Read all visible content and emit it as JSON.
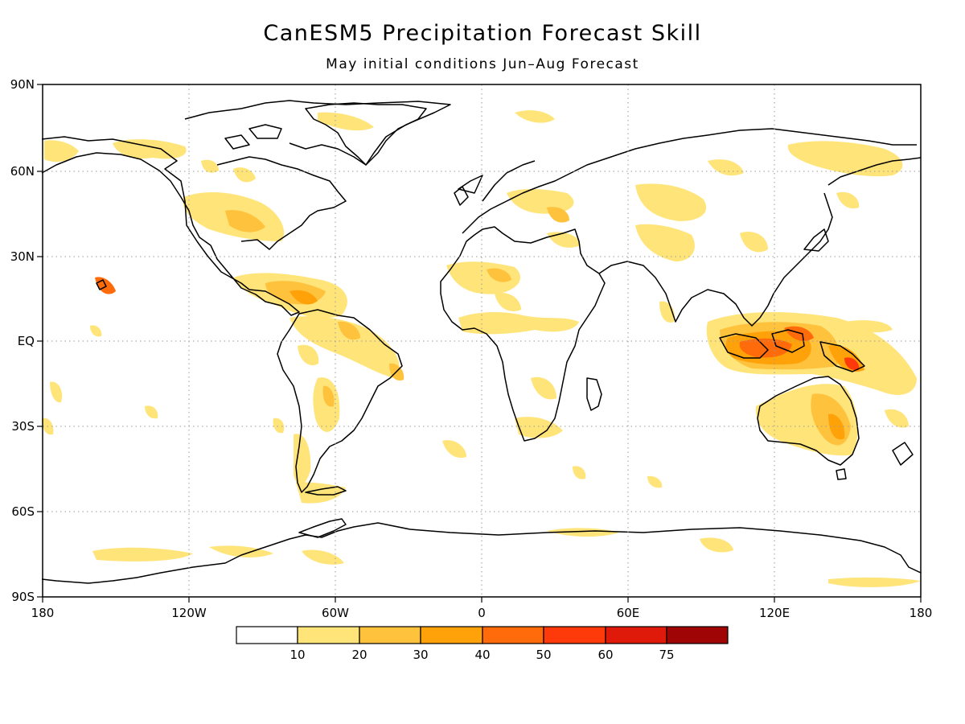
{
  "title": "CanESM5 Precipitation Forecast Skill",
  "subtitle": "May initial conditions   Jun–Aug Forecast",
  "lat_labels": [
    "90N",
    "60N",
    "30N",
    "EQ",
    "30S",
    "60S",
    "90S"
  ],
  "lon_labels": [
    "180",
    "120W",
    "60W",
    "0",
    "60E",
    "120E",
    "180"
  ],
  "colorbar": {
    "labels": [
      "10",
      "20",
      "30",
      "40",
      "50",
      "60",
      "75"
    ],
    "colors": [
      "#ffffff",
      "#ffe47a",
      "#ffc23c",
      "#ffa20a",
      "#ff6a0a",
      "#ff3a0a",
      "#e01a0a",
      "#a00505"
    ]
  },
  "colors": {
    "coast": "#000000",
    "grid": "#9a9a9a"
  }
}
